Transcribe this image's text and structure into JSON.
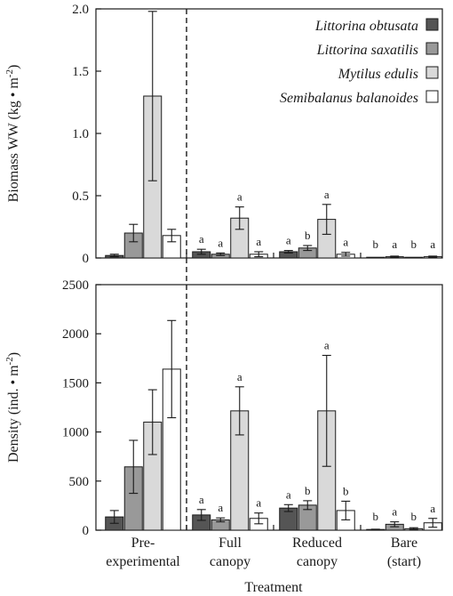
{
  "chart_data": [
    {
      "type": "bar",
      "categories": [
        "Pre-experimental",
        "Full canopy",
        "Reduced canopy",
        "Bare (start)"
      ],
      "category_labels": [
        [
          "Pre-",
          "experimental"
        ],
        [
          "Full",
          "canopy"
        ],
        [
          "Reduced",
          "canopy"
        ],
        [
          "Bare",
          "(start)"
        ]
      ],
      "ylabel_parts": [
        "Biomass WW (kg • m",
        "-2",
        ")"
      ],
      "ylim": [
        0,
        2.0
      ],
      "yticks": [
        "0",
        "0.5",
        "1.0",
        "1.5",
        "2.0"
      ],
      "ytick_values": [
        0,
        0.5,
        1.0,
        1.5,
        2.0
      ],
      "series": [
        {
          "name": "Littorina obtusata",
          "values": [
            0.02,
            0.05,
            0.05,
            0.0
          ],
          "errors": [
            0.01,
            0.02,
            0.01,
            0.0
          ],
          "letters": [
            "",
            "a",
            "a",
            "b"
          ]
        },
        {
          "name": "Littorina saxatilis",
          "values": [
            0.2,
            0.03,
            0.08,
            0.01
          ],
          "errors": [
            0.07,
            0.01,
            0.02,
            0.005
          ],
          "letters": [
            "",
            "a",
            "b",
            "a"
          ]
        },
        {
          "name": "Mytilus edulis",
          "values": [
            1.3,
            0.32,
            0.31,
            0.0
          ],
          "errors": [
            0.68,
            0.09,
            0.12,
            0.0
          ],
          "letters": [
            "",
            "a",
            "a",
            "b"
          ]
        },
        {
          "name": "Semibalanus balanoides",
          "values": [
            0.18,
            0.03,
            0.03,
            0.01
          ],
          "errors": [
            0.05,
            0.02,
            0.015,
            0.005
          ],
          "letters": [
            "",
            "a",
            "a",
            "a"
          ]
        }
      ],
      "legend_position": "top-right"
    },
    {
      "type": "bar",
      "categories": [
        "Pre-experimental",
        "Full canopy",
        "Reduced canopy",
        "Bare (start)"
      ],
      "category_labels": [
        [
          "Pre-",
          "experimental"
        ],
        [
          "Full",
          "canopy"
        ],
        [
          "Reduced",
          "canopy"
        ],
        [
          "Bare",
          "(start)"
        ]
      ],
      "xlabel": "Treatment",
      "ylabel_parts": [
        "Density (ind. • m",
        "-2",
        ")"
      ],
      "ylim": [
        0,
        2500
      ],
      "yticks": [
        "0",
        "500",
        "1000",
        "1500",
        "2000",
        "2500"
      ],
      "ytick_values": [
        0,
        500,
        1000,
        1500,
        2000,
        2500
      ],
      "series": [
        {
          "name": "Littorina obtusata",
          "values": [
            135,
            155,
            225,
            5
          ],
          "errors": [
            65,
            55,
            35,
            5
          ],
          "letters": [
            "",
            "a",
            "a",
            "b"
          ]
        },
        {
          "name": "Littorina saxatilis",
          "values": [
            645,
            105,
            255,
            60
          ],
          "errors": [
            270,
            20,
            45,
            25
          ],
          "letters": [
            "",
            "a",
            "b",
            "a"
          ]
        },
        {
          "name": "Mytilus edulis",
          "values": [
            1100,
            1215,
            1215,
            15
          ],
          "errors": [
            330,
            245,
            565,
            10
          ],
          "letters": [
            "",
            "a",
            "a",
            "b"
          ]
        },
        {
          "name": "Semibalanus balanoides",
          "values": [
            1640,
            120,
            200,
            75
          ],
          "errors": [
            495,
            55,
            95,
            45
          ],
          "letters": [
            "",
            "a",
            "b",
            "a"
          ]
        }
      ]
    }
  ],
  "colors": {
    "series": [
      "#555555",
      "#999999",
      "#d9d9d9",
      "#ffffff"
    ],
    "stroke": "#1a1a1a"
  }
}
